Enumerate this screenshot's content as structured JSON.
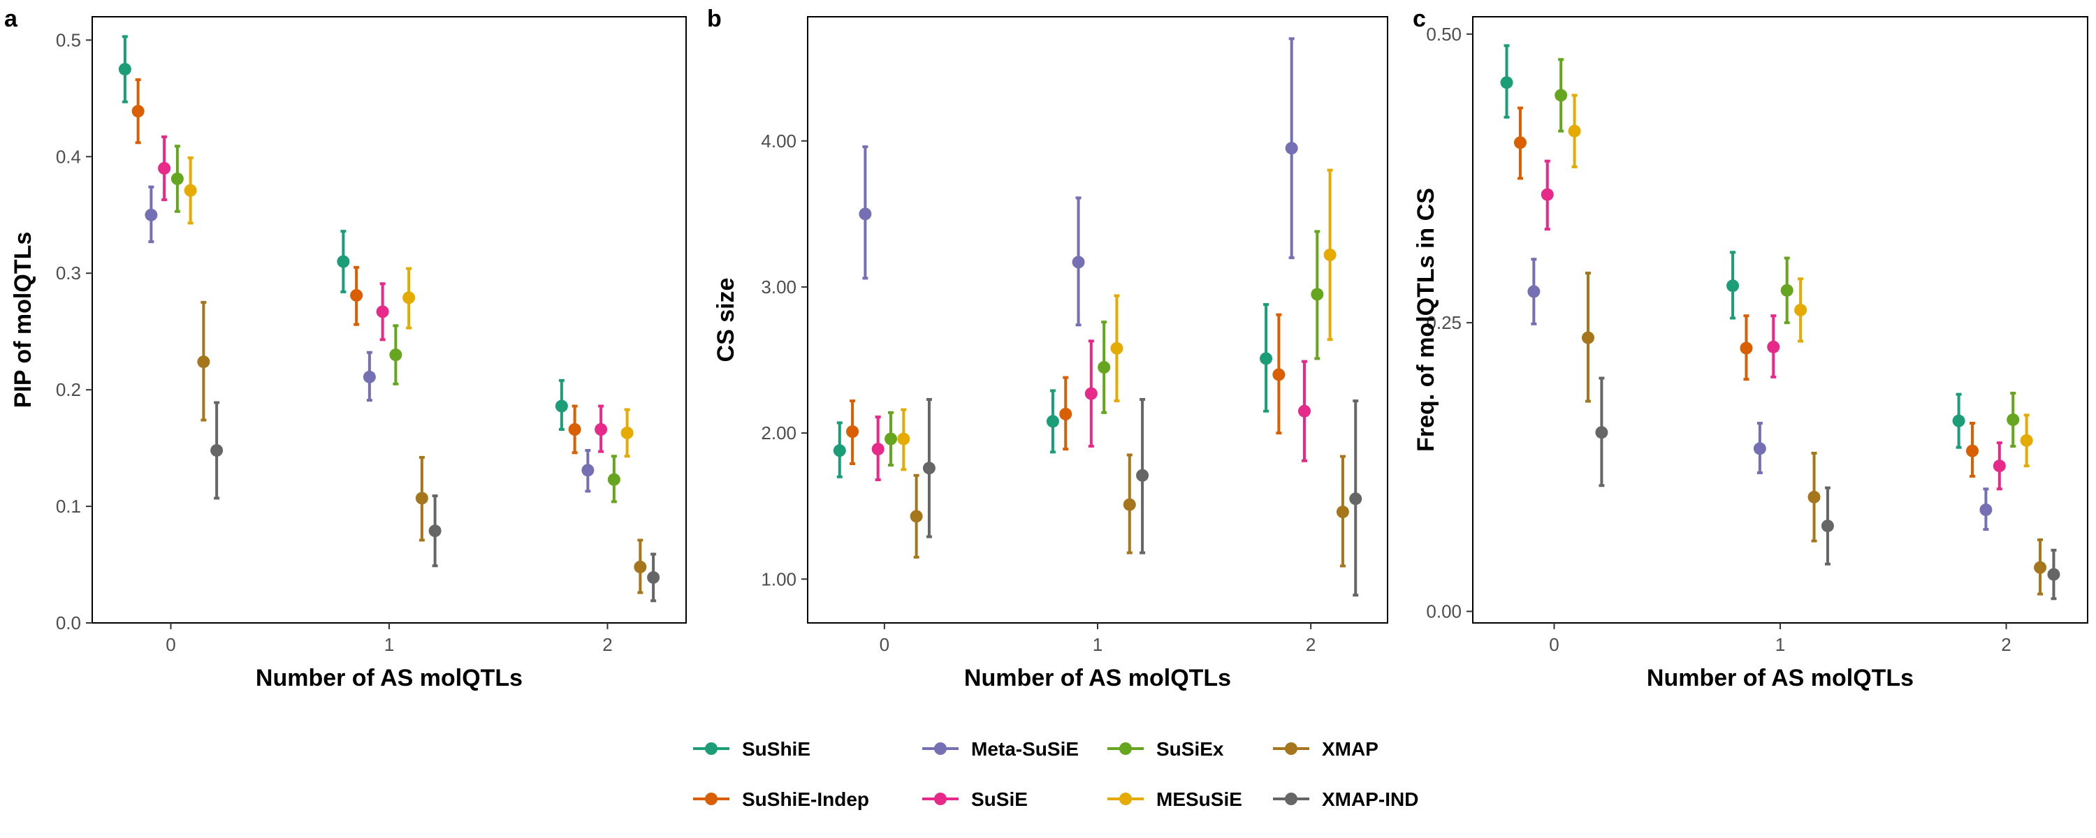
{
  "chart_data": [
    {
      "panel_label": "a",
      "type": "scatter",
      "xlabel": "Number of AS molQTLs",
      "ylabel": "PIP of molQTLs",
      "categories": [
        "0",
        "1",
        "2"
      ],
      "ylim": [
        0,
        0.52
      ],
      "yticks": [
        0.0,
        0.1,
        0.2,
        0.3,
        0.4,
        0.5
      ],
      "ytick_labels": [
        "0.0",
        "0.1",
        "0.2",
        "0.3",
        "0.4",
        "0.5"
      ],
      "grid": false,
      "series": [
        {
          "name": "SuShiE",
          "values": [
            0.475,
            0.31,
            0.186
          ],
          "lower": [
            0.447,
            0.284,
            0.166
          ],
          "upper": [
            0.503,
            0.336,
            0.208
          ]
        },
        {
          "name": "SuShiE-Indep",
          "values": [
            0.439,
            0.281,
            0.166
          ],
          "lower": [
            0.412,
            0.256,
            0.146
          ],
          "upper": [
            0.466,
            0.305,
            0.186
          ]
        },
        {
          "name": "Meta-SuSiE",
          "values": [
            0.35,
            0.211,
            0.131
          ],
          "lower": [
            0.327,
            0.191,
            0.113
          ],
          "upper": [
            0.374,
            0.232,
            0.148
          ]
        },
        {
          "name": "SuSiE",
          "values": [
            0.39,
            0.267,
            0.166
          ],
          "lower": [
            0.363,
            0.243,
            0.147
          ],
          "upper": [
            0.417,
            0.291,
            0.186
          ]
        },
        {
          "name": "SuSiEx",
          "values": [
            0.381,
            0.23,
            0.123
          ],
          "lower": [
            0.353,
            0.205,
            0.104
          ],
          "upper": [
            0.409,
            0.255,
            0.143
          ]
        },
        {
          "name": "MESuSiE",
          "values": [
            0.371,
            0.279,
            0.163
          ],
          "lower": [
            0.343,
            0.253,
            0.143
          ],
          "upper": [
            0.399,
            0.304,
            0.183
          ]
        },
        {
          "name": "XMAP",
          "values": [
            0.224,
            0.107,
            0.048
          ],
          "lower": [
            0.174,
            0.071,
            0.026
          ],
          "upper": [
            0.275,
            0.142,
            0.071
          ]
        },
        {
          "name": "XMAP-IND",
          "values": [
            0.148,
            0.079,
            0.039
          ],
          "lower": [
            0.107,
            0.049,
            0.019
          ],
          "upper": [
            0.189,
            0.109,
            0.059
          ]
        }
      ]
    },
    {
      "panel_label": "b",
      "type": "scatter",
      "xlabel": "Number of AS molQTLs",
      "ylabel": "CS size",
      "categories": [
        "0",
        "1",
        "2"
      ],
      "ylim": [
        0.7,
        4.85
      ],
      "yticks": [
        1,
        2,
        3,
        4
      ],
      "ytick_labels": [
        "1.00",
        "2.00",
        "3.00",
        "4.00"
      ],
      "grid": false,
      "series": [
        {
          "name": "SuShiE",
          "values": [
            1.88,
            2.08,
            2.51
          ],
          "lower": [
            1.7,
            1.87,
            2.15
          ],
          "upper": [
            2.07,
            2.29,
            2.88
          ]
        },
        {
          "name": "SuShiE-Indep",
          "values": [
            2.01,
            2.13,
            2.4
          ],
          "lower": [
            1.79,
            1.89,
            2.0
          ],
          "upper": [
            2.22,
            2.38,
            2.81
          ]
        },
        {
          "name": "Meta-SuSiE",
          "values": [
            3.5,
            3.17,
            3.95
          ],
          "lower": [
            3.06,
            2.74,
            3.2
          ],
          "upper": [
            3.96,
            3.61,
            4.7
          ]
        },
        {
          "name": "SuSiE",
          "values": [
            1.89,
            2.27,
            2.15
          ],
          "lower": [
            1.68,
            1.91,
            1.81
          ],
          "upper": [
            2.11,
            2.63,
            2.49
          ]
        },
        {
          "name": "SuSiEx",
          "values": [
            1.96,
            2.45,
            2.95
          ],
          "lower": [
            1.78,
            2.14,
            2.51
          ],
          "upper": [
            2.14,
            2.76,
            3.38
          ]
        },
        {
          "name": "MESuSiE",
          "values": [
            1.96,
            2.58,
            3.22
          ],
          "lower": [
            1.75,
            2.22,
            2.64
          ],
          "upper": [
            2.16,
            2.94,
            3.8
          ]
        },
        {
          "name": "XMAP",
          "values": [
            1.43,
            1.51,
            1.46
          ],
          "lower": [
            1.15,
            1.18,
            1.09
          ],
          "upper": [
            1.71,
            1.85,
            1.84
          ]
        },
        {
          "name": "XMAP-IND",
          "values": [
            1.76,
            1.71,
            1.55
          ],
          "lower": [
            1.29,
            1.18,
            0.89
          ],
          "upper": [
            2.23,
            2.23,
            2.22
          ]
        }
      ]
    },
    {
      "panel_label": "c",
      "type": "scatter",
      "xlabel": "Number of AS molQTLs",
      "ylabel": "Freq. of molQTLs in CS",
      "categories": [
        "0",
        "1",
        "2"
      ],
      "ylim": [
        -0.01,
        0.515
      ],
      "yticks": [
        0.0,
        0.25,
        0.5
      ],
      "ytick_labels": [
        "0.00",
        "0.25",
        "0.50"
      ],
      "grid": false,
      "series": [
        {
          "name": "SuShiE",
          "values": [
            0.458,
            0.282,
            0.165
          ],
          "lower": [
            0.428,
            0.254,
            0.142
          ],
          "upper": [
            0.49,
            0.311,
            0.188
          ]
        },
        {
          "name": "SuShiE-Indep",
          "values": [
            0.406,
            0.228,
            0.139
          ],
          "lower": [
            0.375,
            0.201,
            0.117
          ],
          "upper": [
            0.436,
            0.256,
            0.163
          ]
        },
        {
          "name": "Meta-SuSiE",
          "values": [
            0.277,
            0.141,
            0.088
          ],
          "lower": [
            0.249,
            0.12,
            0.071
          ],
          "upper": [
            0.305,
            0.163,
            0.106
          ]
        },
        {
          "name": "SuSiE",
          "values": [
            0.361,
            0.229,
            0.126
          ],
          "lower": [
            0.331,
            0.203,
            0.106
          ],
          "upper": [
            0.39,
            0.256,
            0.146
          ]
        },
        {
          "name": "SuSiEx",
          "values": [
            0.447,
            0.278,
            0.166
          ],
          "lower": [
            0.416,
            0.25,
            0.143
          ],
          "upper": [
            0.478,
            0.306,
            0.189
          ]
        },
        {
          "name": "MESuSiE",
          "values": [
            0.416,
            0.261,
            0.148
          ],
          "lower": [
            0.385,
            0.234,
            0.126
          ],
          "upper": [
            0.447,
            0.288,
            0.17
          ]
        },
        {
          "name": "XMAP",
          "values": [
            0.237,
            0.099,
            0.038
          ],
          "lower": [
            0.182,
            0.061,
            0.015
          ],
          "upper": [
            0.293,
            0.137,
            0.062
          ]
        },
        {
          "name": "XMAP-IND",
          "values": [
            0.155,
            0.074,
            0.032
          ],
          "lower": [
            0.109,
            0.041,
            0.011
          ],
          "upper": [
            0.202,
            0.107,
            0.053
          ]
        }
      ]
    }
  ],
  "legend": {
    "position": "bottom",
    "items": [
      {
        "name": "SuShiE",
        "color": "#1b9e77"
      },
      {
        "name": "SuShiE-Indep",
        "color": "#d95f02"
      },
      {
        "name": "Meta-SuSiE",
        "color": "#7570b3"
      },
      {
        "name": "SuSiE",
        "color": "#e7298a"
      },
      {
        "name": "SuSiEx",
        "color": "#66a61e"
      },
      {
        "name": "MESuSiE",
        "color": "#e6ab02"
      },
      {
        "name": "XMAP",
        "color": "#a6761d"
      },
      {
        "name": "XMAP-IND",
        "color": "#666666"
      }
    ]
  }
}
